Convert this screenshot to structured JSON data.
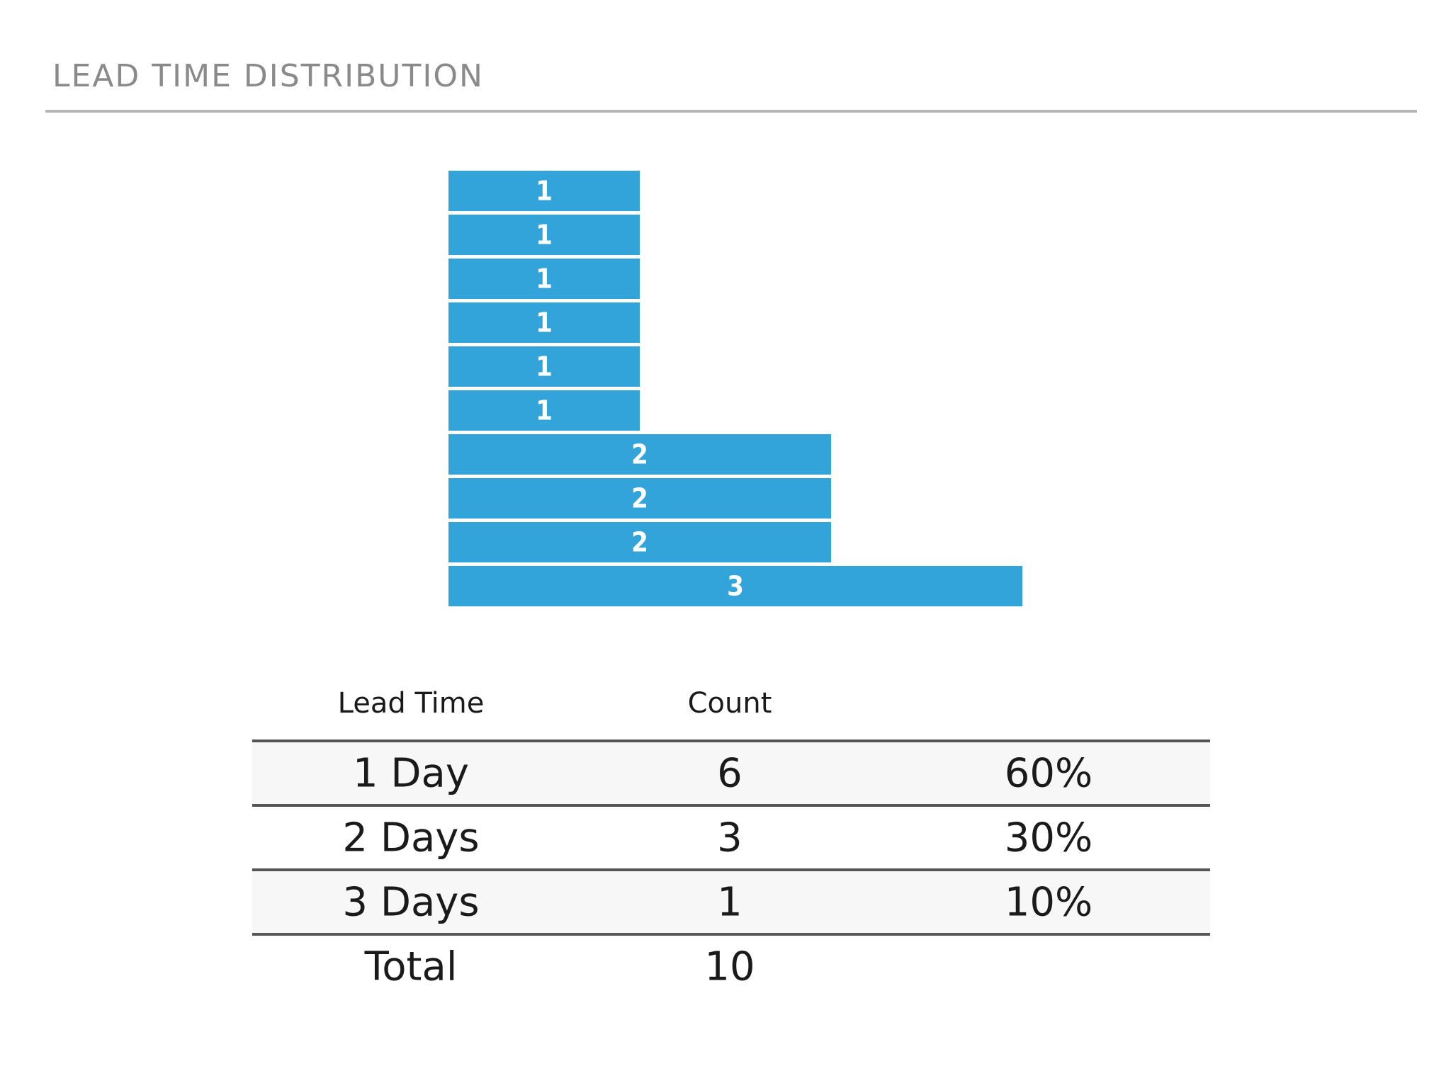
{
  "header": {
    "title": "LEAD TIME DISTRIBUTION"
  },
  "chart_data": {
    "type": "bar",
    "orientation": "horizontal",
    "description_of_marks": "ten stacked horizontal bars, one per item; bar length equals the item's lead time in days",
    "values": [
      1,
      1,
      1,
      1,
      1,
      1,
      2,
      2,
      2,
      3
    ],
    "data_labels": [
      "1",
      "1",
      "1",
      "1",
      "1",
      "1",
      "2",
      "2",
      "2",
      "3"
    ],
    "xlim": [
      0,
      3
    ],
    "bar_color": "#33a4da",
    "label_color": "#ffffff",
    "grid": false,
    "legend": "none"
  },
  "table": {
    "headers": [
      "Lead Time",
      "Count",
      ""
    ],
    "rows": [
      {
        "lead_time": "1 Day",
        "count": "6",
        "percent": "60%"
      },
      {
        "lead_time": "2 Days",
        "count": "3",
        "percent": "30%"
      },
      {
        "lead_time": "3 Days",
        "count": "1",
        "percent": "10%"
      }
    ],
    "total": {
      "label": "Total",
      "count": "10"
    }
  },
  "colors": {
    "title": "#8a8a8a",
    "rule": "#b5b5b5",
    "table_rule": "#555555",
    "row_shade": "#f7f7f7",
    "text": "#1a1a1a"
  }
}
